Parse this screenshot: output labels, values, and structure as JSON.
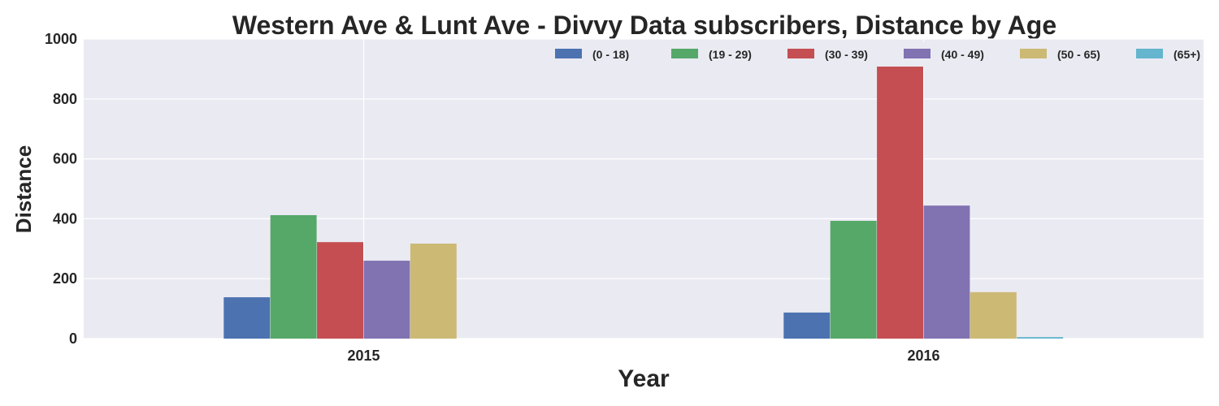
{
  "chart_data": {
    "type": "bar",
    "title": "Western Ave & Lunt Ave - Divvy Data subscribers, Distance by Age",
    "xlabel": "Year",
    "ylabel": "Distance",
    "categories": [
      "2015",
      "2016"
    ],
    "ylim": [
      0,
      1000
    ],
    "yticks": [
      "0",
      "200",
      "400",
      "600",
      "800",
      "1000"
    ],
    "grid": true,
    "legend_position": "top-right",
    "series": [
      {
        "name": "(0 - 18)",
        "color": "#4c72b0",
        "values": [
          138,
          87
        ]
      },
      {
        "name": "(19 - 29)",
        "color": "#55a868",
        "values": [
          412,
          393
        ]
      },
      {
        "name": "(30 - 39)",
        "color": "#c44e52",
        "values": [
          322,
          912
        ]
      },
      {
        "name": "(40 - 49)",
        "color": "#8172b2",
        "values": [
          260,
          444
        ]
      },
      {
        "name": "(50 - 65)",
        "color": "#ccb974",
        "values": [
          317,
          155
        ]
      },
      {
        "name": "(65+)",
        "color": "#64b5cd",
        "values": [
          0,
          5
        ]
      }
    ]
  },
  "colors": {
    "plot_background": "#eaeaf2",
    "grid": "#ffffff",
    "text": "#262626"
  }
}
